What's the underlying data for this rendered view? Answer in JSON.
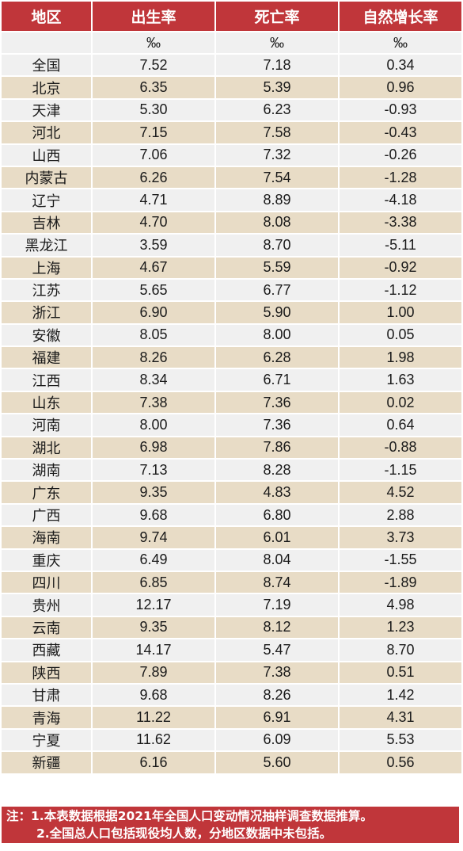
{
  "headers": [
    "地区",
    "出生率",
    "死亡率",
    "自然增长率"
  ],
  "units": [
    "",
    "‰",
    "‰",
    "‰"
  ],
  "rows": [
    [
      "全国",
      "7.52",
      "7.18",
      "0.34"
    ],
    [
      "北京",
      "6.35",
      "5.39",
      "0.96"
    ],
    [
      "天津",
      "5.30",
      "6.23",
      "-0.93"
    ],
    [
      "河北",
      "7.15",
      "7.58",
      "-0.43"
    ],
    [
      "山西",
      "7.06",
      "7.32",
      "-0.26"
    ],
    [
      "内蒙古",
      "6.26",
      "7.54",
      "-1.28"
    ],
    [
      "辽宁",
      "4.71",
      "8.89",
      "-4.18"
    ],
    [
      "吉林",
      "4.70",
      "8.08",
      "-3.38"
    ],
    [
      "黑龙江",
      "3.59",
      "8.70",
      "-5.11"
    ],
    [
      "上海",
      "4.67",
      "5.59",
      "-0.92"
    ],
    [
      "江苏",
      "5.65",
      "6.77",
      "-1.12"
    ],
    [
      "浙江",
      "6.90",
      "5.90",
      "1.00"
    ],
    [
      "安徽",
      "8.05",
      "8.00",
      "0.05"
    ],
    [
      "福建",
      "8.26",
      "6.28",
      "1.98"
    ],
    [
      "江西",
      "8.34",
      "6.71",
      "1.63"
    ],
    [
      "山东",
      "7.38",
      "7.36",
      "0.02"
    ],
    [
      "河南",
      "8.00",
      "7.36",
      "0.64"
    ],
    [
      "湖北",
      "6.98",
      "7.86",
      "-0.88"
    ],
    [
      "湖南",
      "7.13",
      "8.28",
      "-1.15"
    ],
    [
      "广东",
      "9.35",
      "4.83",
      "4.52"
    ],
    [
      "广西",
      "9.68",
      "6.80",
      "2.88"
    ],
    [
      "海南",
      "9.74",
      "6.01",
      "3.73"
    ],
    [
      "重庆",
      "6.49",
      "8.04",
      "-1.55"
    ],
    [
      "四川",
      "6.85",
      "8.74",
      "-1.89"
    ],
    [
      "贵州",
      "12.17",
      "7.19",
      "4.98"
    ],
    [
      "云南",
      "9.35",
      "8.12",
      "1.23"
    ],
    [
      "西藏",
      "14.17",
      "5.47",
      "8.70"
    ],
    [
      "陕西",
      "7.89",
      "7.38",
      "0.51"
    ],
    [
      "甘肃",
      "9.68",
      "8.26",
      "1.42"
    ],
    [
      "青海",
      "11.22",
      "6.91",
      "4.31"
    ],
    [
      "宁夏",
      "11.62",
      "6.09",
      "5.53"
    ],
    [
      "新疆",
      "6.16",
      "5.60",
      "0.56"
    ]
  ],
  "note": {
    "label": "注：",
    "line1": "1.本表数据根据2021年全国人口变动情况抽样调查数据推算。",
    "line2": "2.全国总人口包括现役均人数，分地区数据中未包括。"
  },
  "colors": {
    "header_bg": "#c0363a",
    "row_light": "#f0f0f0",
    "row_beige": "#e8dcc6"
  }
}
